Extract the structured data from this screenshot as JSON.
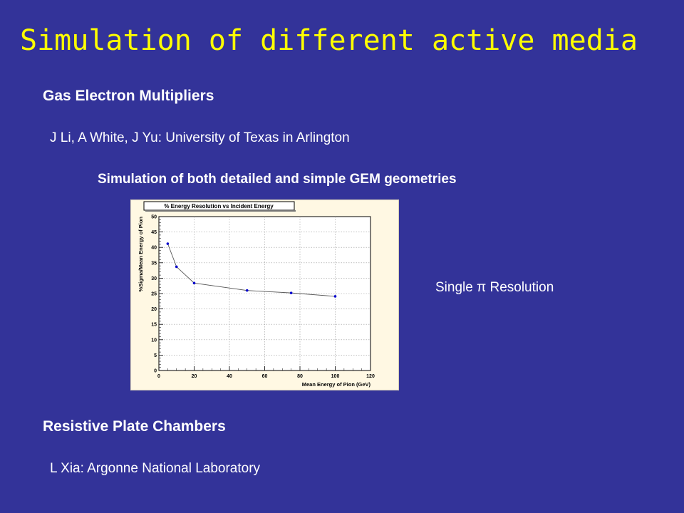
{
  "slide": {
    "title": "Simulation of different active media",
    "gem_heading": "Gas Electron Multipliers",
    "gem_authors": "J Li, A White, J Yu: University of Texas in Arlington",
    "gem_subtitle": "Simulation of both detailed and simple GEM geometries",
    "side_label": "Single π Resolution",
    "rpc_heading": "Resistive Plate Chambers",
    "rpc_authors": "L Xia: Argonne National Laboratory"
  },
  "chart_data": {
    "type": "line",
    "title": "% Energy Resolution vs Incident Energy",
    "xlabel": "Mean Energy of Pion (GeV)",
    "ylabel": "%Sigma/Mean Energy of Pion",
    "xlim": [
      0,
      120
    ],
    "ylim": [
      0,
      50
    ],
    "xticks": [
      0,
      20,
      40,
      60,
      80,
      100,
      120
    ],
    "yticks": [
      0,
      5,
      10,
      15,
      20,
      25,
      30,
      35,
      40,
      45,
      50
    ],
    "grid": true,
    "series": [
      {
        "x": [
          5,
          10,
          20,
          50,
          75,
          100
        ],
        "y": [
          41.2,
          33.7,
          28.4,
          26.0,
          25.2,
          24.1
        ]
      }
    ],
    "colors": {
      "point": "#0000cc",
      "line": "#555555",
      "frame_bg": "#fff8e3",
      "plot_bg": "#ffffff"
    }
  }
}
